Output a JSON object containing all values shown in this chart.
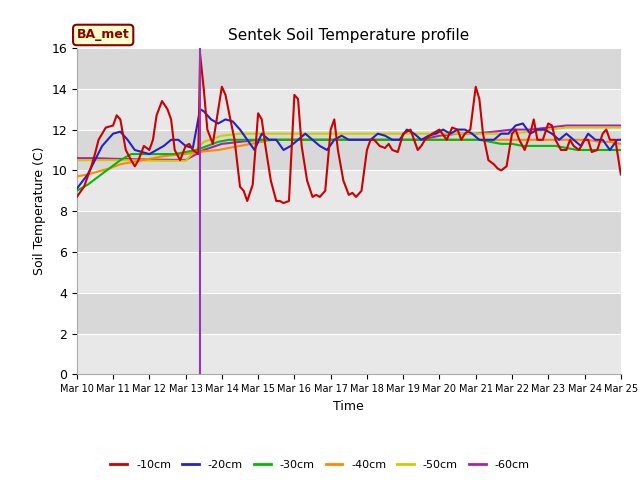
{
  "title": "Sentek Soil Temperature profile",
  "xlabel": "Time",
  "ylabel": "Soil Temperature (C)",
  "ylim": [
    0,
    16
  ],
  "yticks": [
    0,
    2,
    4,
    6,
    8,
    10,
    12,
    14,
    16
  ],
  "bg_color_light": "#e8e8e8",
  "bg_color_dark": "#d8d8d8",
  "annotation_label": "BA_met",
  "vline_x": 3.4,
  "colors": {
    "-10cm": "#cc0000",
    "-20cm": "#2222cc",
    "-30cm": "#00bb00",
    "-40cm": "#ff8800",
    "-50cm": "#cccc00",
    "-60cm": "#aa22aa"
  },
  "x_start": 0,
  "x_end": 15,
  "x_labels": [
    "Mar 10",
    "Mar 11",
    "Mar 12",
    "Mar 13",
    "Mar 14",
    "Mar 15",
    "Mar 16",
    "Mar 17",
    "Mar 18",
    "Mar 19",
    "Mar 20",
    "Mar 21",
    "Mar 22",
    "Mar 23",
    "Mar 24",
    "Mar 25"
  ],
  "x_ticks": [
    0,
    1,
    2,
    3,
    4,
    5,
    6,
    7,
    8,
    9,
    10,
    11,
    12,
    13,
    14,
    15
  ],
  "series": {
    "-10cm": {
      "x": [
        0,
        0.2,
        0.4,
        0.5,
        0.6,
        0.8,
        1.0,
        1.1,
        1.2,
        1.35,
        1.5,
        1.6,
        1.7,
        1.85,
        2.0,
        2.1,
        2.2,
        2.35,
        2.5,
        2.6,
        2.7,
        2.85,
        3.0,
        3.1,
        3.2,
        3.35,
        3.4,
        3.5,
        3.6,
        3.75,
        4.0,
        4.1,
        4.2,
        4.35,
        4.5,
        4.6,
        4.7,
        4.85,
        5.0,
        5.1,
        5.2,
        5.35,
        5.5,
        5.6,
        5.7,
        5.85,
        6.0,
        6.1,
        6.2,
        6.35,
        6.5,
        6.6,
        6.7,
        6.85,
        7.0,
        7.1,
        7.2,
        7.35,
        7.5,
        7.6,
        7.7,
        7.85,
        8.0,
        8.1,
        8.2,
        8.35,
        8.5,
        8.6,
        8.7,
        8.85,
        9.0,
        9.2,
        9.4,
        9.5,
        9.6,
        9.8,
        10.0,
        10.2,
        10.35,
        10.5,
        10.6,
        10.7,
        10.85,
        11.0,
        11.1,
        11.2,
        11.35,
        11.5,
        11.6,
        11.7,
        11.85,
        12.0,
        12.1,
        12.2,
        12.35,
        12.5,
        12.6,
        12.7,
        12.85,
        13.0,
        13.1,
        13.2,
        13.35,
        13.5,
        13.6,
        13.7,
        13.85,
        14.0,
        14.1,
        14.2,
        14.35,
        14.5,
        14.6,
        14.7,
        14.85,
        15.0
      ],
      "y": [
        8.7,
        9.2,
        10.2,
        10.8,
        11.5,
        12.1,
        12.2,
        12.7,
        12.5,
        11.0,
        10.5,
        10.2,
        10.5,
        11.2,
        11.0,
        11.5,
        12.7,
        13.4,
        13.0,
        12.5,
        11.0,
        10.5,
        11.2,
        11.3,
        11.0,
        10.8,
        15.7,
        14.0,
        12.0,
        11.3,
        14.1,
        13.7,
        12.8,
        11.5,
        9.2,
        9.0,
        8.5,
        9.3,
        12.8,
        12.5,
        11.2,
        9.5,
        8.5,
        8.5,
        8.4,
        8.5,
        13.7,
        13.5,
        11.2,
        9.5,
        8.7,
        8.8,
        8.7,
        9.0,
        12.0,
        12.5,
        11.0,
        9.5,
        8.8,
        8.9,
        8.7,
        9.0,
        11.0,
        11.5,
        11.5,
        11.2,
        11.1,
        11.3,
        11.0,
        10.9,
        11.8,
        12.0,
        11.0,
        11.2,
        11.5,
        11.8,
        12.0,
        11.5,
        12.1,
        12.0,
        11.5,
        11.8,
        12.0,
        14.1,
        13.5,
        11.8,
        10.5,
        10.3,
        10.1,
        10.0,
        10.2,
        11.8,
        12.0,
        11.5,
        11.0,
        11.8,
        12.5,
        11.5,
        11.5,
        12.3,
        12.2,
        11.5,
        11.0,
        11.0,
        11.5,
        11.2,
        11.0,
        11.5,
        11.5,
        10.9,
        11.0,
        11.8,
        12.0,
        11.5,
        11.5,
        9.8
      ]
    },
    "-20cm": {
      "x": [
        0,
        0.3,
        0.5,
        0.7,
        1.0,
        1.2,
        1.4,
        1.6,
        1.8,
        2.0,
        2.2,
        2.4,
        2.6,
        2.8,
        3.0,
        3.2,
        3.4,
        3.5,
        3.7,
        3.9,
        4.1,
        4.3,
        4.5,
        4.7,
        4.9,
        5.1,
        5.3,
        5.5,
        5.7,
        5.9,
        6.1,
        6.3,
        6.5,
        6.7,
        6.9,
        7.1,
        7.3,
        7.5,
        7.7,
        7.9,
        8.1,
        8.3,
        8.5,
        8.7,
        8.9,
        9.1,
        9.3,
        9.5,
        9.7,
        9.9,
        10.1,
        10.3,
        10.5,
        10.7,
        10.9,
        11.1,
        11.3,
        11.5,
        11.7,
        11.9,
        12.1,
        12.3,
        12.5,
        12.7,
        12.9,
        13.1,
        13.3,
        13.5,
        13.7,
        13.9,
        14.1,
        14.3,
        14.5,
        14.7,
        14.9,
        15.0
      ],
      "y": [
        9.1,
        9.8,
        10.5,
        11.2,
        11.8,
        11.9,
        11.5,
        11.0,
        10.9,
        10.8,
        11.0,
        11.2,
        11.5,
        11.5,
        11.2,
        11.1,
        13.0,
        12.9,
        12.5,
        12.3,
        12.5,
        12.4,
        12.0,
        11.5,
        11.0,
        11.8,
        11.5,
        11.5,
        11.0,
        11.2,
        11.5,
        11.8,
        11.5,
        11.2,
        11.0,
        11.5,
        11.7,
        11.5,
        11.5,
        11.5,
        11.5,
        11.8,
        11.7,
        11.5,
        11.5,
        12.0,
        11.8,
        11.5,
        11.7,
        11.8,
        12.0,
        11.8,
        12.0,
        12.0,
        11.8,
        11.5,
        11.5,
        11.5,
        11.8,
        11.8,
        12.2,
        12.3,
        11.8,
        12.0,
        12.0,
        11.8,
        11.5,
        11.8,
        11.5,
        11.2,
        11.8,
        11.5,
        11.5,
        11.0,
        11.5,
        11.5
      ]
    },
    "-30cm": {
      "x": [
        0,
        0.3,
        0.6,
        0.9,
        1.2,
        1.5,
        1.8,
        2.1,
        2.4,
        2.7,
        3.0,
        3.3,
        3.6,
        3.9,
        4.2,
        4.5,
        4.8,
        5.1,
        5.4,
        5.7,
        6.0,
        6.3,
        6.6,
        6.9,
        7.2,
        7.5,
        7.8,
        8.1,
        8.4,
        8.7,
        9.0,
        9.3,
        9.6,
        9.9,
        10.2,
        10.5,
        10.8,
        11.1,
        11.4,
        11.7,
        12.0,
        12.3,
        12.6,
        12.9,
        13.2,
        13.5,
        13.8,
        14.1,
        14.4,
        14.7,
        15.0
      ],
      "y": [
        9.0,
        9.3,
        9.7,
        10.1,
        10.5,
        10.8,
        10.8,
        10.8,
        10.8,
        10.8,
        10.9,
        11.0,
        11.2,
        11.4,
        11.5,
        11.5,
        11.5,
        11.5,
        11.5,
        11.5,
        11.5,
        11.5,
        11.5,
        11.5,
        11.5,
        11.5,
        11.5,
        11.5,
        11.5,
        11.5,
        11.5,
        11.5,
        11.5,
        11.5,
        11.5,
        11.5,
        11.5,
        11.5,
        11.4,
        11.3,
        11.3,
        11.2,
        11.2,
        11.2,
        11.2,
        11.1,
        11.0,
        11.0,
        11.0,
        11.0,
        11.0
      ]
    },
    "-40cm": {
      "x": [
        0,
        0.3,
        0.6,
        0.9,
        1.2,
        1.5,
        1.8,
        2.1,
        2.4,
        2.7,
        3.0,
        3.3,
        3.6,
        3.9,
        4.2,
        4.5,
        4.8,
        5.1,
        5.4,
        5.7,
        6.0,
        6.3,
        6.6,
        6.9,
        7.2,
        7.5,
        7.8,
        8.1,
        8.4,
        8.7,
        9.0,
        9.3,
        9.6,
        9.9,
        10.2,
        10.5,
        10.8,
        11.1,
        11.4,
        11.7,
        12.0,
        12.3,
        12.6,
        12.9,
        13.2,
        13.5,
        13.8,
        14.1,
        14.4,
        14.7,
        15.0
      ],
      "y": [
        9.7,
        9.8,
        9.95,
        10.1,
        10.3,
        10.4,
        10.5,
        10.6,
        10.7,
        10.75,
        10.8,
        10.9,
        10.95,
        11.0,
        11.1,
        11.2,
        11.3,
        11.4,
        11.5,
        11.5,
        11.5,
        11.5,
        11.5,
        11.5,
        11.5,
        11.5,
        11.5,
        11.5,
        11.5,
        11.5,
        11.5,
        11.5,
        11.5,
        11.5,
        11.5,
        11.5,
        11.5,
        11.5,
        11.5,
        11.5,
        11.5,
        11.5,
        11.5,
        11.5,
        11.5,
        11.5,
        11.5,
        11.5,
        11.4,
        11.4,
        11.3
      ]
    },
    "-50cm": {
      "x": [
        0,
        0.5,
        1.0,
        1.5,
        2.0,
        2.5,
        3.0,
        3.5,
        4.0,
        4.5,
        5.0,
        5.5,
        6.0,
        6.5,
        7.0,
        7.5,
        8.0,
        8.5,
        9.0,
        9.5,
        10.0,
        10.5,
        11.0,
        11.5,
        12.0,
        12.5,
        13.0,
        13.5,
        14.0,
        14.5,
        15.0
      ],
      "y": [
        10.5,
        10.5,
        10.5,
        10.5,
        10.48,
        10.47,
        10.47,
        11.4,
        11.7,
        11.8,
        11.8,
        11.8,
        11.8,
        11.8,
        11.8,
        11.8,
        11.8,
        11.8,
        11.8,
        11.8,
        11.8,
        11.8,
        11.8,
        11.8,
        11.8,
        11.9,
        12.0,
        12.1,
        12.1,
        12.1,
        12.1
      ]
    },
    "-60cm": {
      "x": [
        0,
        0.5,
        1.0,
        1.5,
        2.0,
        2.5,
        3.0,
        3.5,
        4.0,
        4.5,
        5.0,
        5.5,
        6.0,
        6.5,
        7.0,
        7.5,
        8.0,
        8.5,
        9.0,
        9.5,
        10.0,
        10.5,
        11.0,
        11.5,
        12.0,
        12.5,
        13.0,
        13.5,
        14.0,
        14.5,
        15.0
      ],
      "y": [
        10.6,
        10.6,
        10.57,
        10.55,
        10.53,
        10.52,
        10.51,
        11.0,
        11.3,
        11.4,
        11.5,
        11.5,
        11.5,
        11.5,
        11.5,
        11.5,
        11.5,
        11.5,
        11.5,
        11.5,
        11.7,
        11.8,
        11.8,
        11.9,
        12.0,
        12.0,
        12.1,
        12.2,
        12.2,
        12.2,
        12.2
      ]
    }
  }
}
